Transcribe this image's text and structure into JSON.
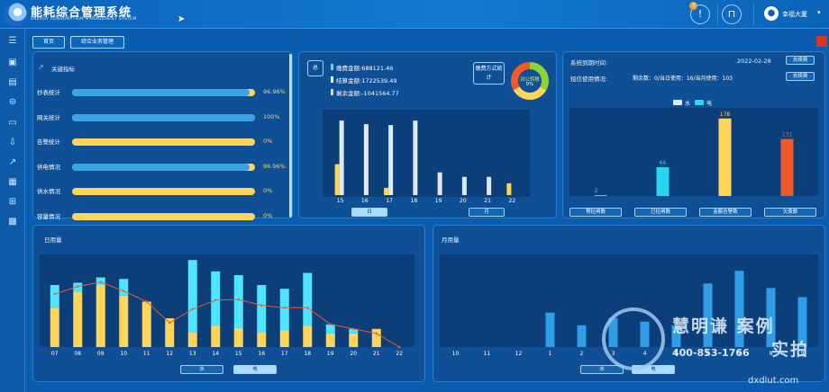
{
  "header": {
    "title": "能耗综合管理系统",
    "subtitle": "ENERGY CONSUMPTION MANAGEMENT SYSTEM",
    "notice_count": "3",
    "user": "幸福大厦"
  },
  "tabs": [
    {
      "label": "首页"
    },
    {
      "label": "综合业务管理"
    }
  ],
  "indicators": {
    "title": "关键指标",
    "items": [
      {
        "label": "抄表统计",
        "value": "96.96%",
        "pct": 96.96
      },
      {
        "label": "网关统计",
        "value": "100%",
        "pct": 100
      },
      {
        "label": "告警统计",
        "value": "0%",
        "pct": 0
      },
      {
        "label": "供电情况",
        "value": "96.96%",
        "pct": 96.96
      },
      {
        "label": "供水情况",
        "value": "0%",
        "pct": 0
      },
      {
        "label": "容量情况",
        "value": "0%",
        "pct": 0
      }
    ]
  },
  "billing": {
    "tag": "总",
    "lines": [
      {
        "text": "缴费金额:688121.46",
        "color": "#46e3ff"
      },
      {
        "text": "结算金额:1722539.49",
        "color": "#ffffff"
      },
      {
        "text": "剩余金额:-1041564.77",
        "color": "#ffd45a"
      }
    ],
    "method_label": "缴费方式统计",
    "donut_label": "对公转账",
    "donut_value": "0%",
    "buttons": {
      "day": "日",
      "month": "月"
    },
    "chart_data": {
      "type": "bar",
      "categories": [
        "15",
        "16",
        "17",
        "18",
        "19",
        "20",
        "21",
        "22"
      ],
      "series": [
        {
          "color": "#ffd45a",
          "values": [
            340,
            0,
            80,
            0,
            0,
            0,
            0,
            130
          ]
        },
        {
          "color": "#dfe8f5",
          "values": [
            820,
            780,
            770,
            820,
            250,
            200,
            200,
            0
          ]
        }
      ],
      "ylim": [
        0,
        900
      ]
    }
  },
  "system": {
    "expire_label": "系统到期时间:",
    "expire_date": "2022-02-28",
    "renew1": "去续费",
    "sms_label": "短信使用情况:",
    "sms_info": "剩余数：0/当日使用：16/当月使用：103",
    "renew2": "去续费",
    "legend": [
      {
        "label": "水",
        "color": "#dfe8f5"
      },
      {
        "label": "电",
        "color": "#29d6f0"
      }
    ],
    "buttons": [
      "预拉闸数",
      "已拉闸数",
      "金额告警数",
      "欠费数"
    ],
    "chart_data": {
      "type": "bar",
      "categories": [
        "预拉闸数",
        "已拉闸数",
        "金额告警数",
        "欠费数"
      ],
      "values": [
        2,
        66,
        178,
        131
      ],
      "colors": [
        "#29d6f0",
        "#29d6f0",
        "#ffd45a",
        "#f05a28"
      ],
      "ylim": [
        0,
        190
      ]
    }
  },
  "daily": {
    "title": "日用量",
    "buttons": {
      "water": "水",
      "elec": "电"
    },
    "chart_data": {
      "type": "bar",
      "categories": [
        "07",
        "08",
        "09",
        "10",
        "11",
        "12",
        "13",
        "14",
        "15",
        "16",
        "17",
        "18",
        "19",
        "20",
        "21",
        "22"
      ],
      "series": [
        {
          "color": "#ffd45a",
          "values": [
            52,
            73,
            82,
            68,
            60,
            38,
            20,
            28,
            25,
            20,
            22,
            28,
            18,
            18,
            24,
            0
          ]
        },
        {
          "color": "#4ee6ff",
          "values": [
            30,
            12,
            10,
            22,
            0,
            0,
            95,
            72,
            70,
            62,
            55,
            70,
            12,
            6,
            0,
            0
          ]
        }
      ],
      "line": [
        70,
        80,
        86,
        74,
        60,
        32,
        50,
        62,
        63,
        55,
        52,
        52,
        30,
        24,
        18,
        0
      ],
      "line_color": "#f05a28",
      "ylim": [
        0,
        120
      ]
    }
  },
  "monthly": {
    "title": "月用量",
    "buttons": {
      "water": "水",
      "elec": "电"
    },
    "chart_data": {
      "type": "bar",
      "categories": [
        "10",
        "11",
        "12",
        "1",
        "2",
        "3",
        "4",
        "5",
        "6",
        "7",
        "8",
        "9"
      ],
      "values": [
        0,
        0,
        0,
        38,
        24,
        32,
        28,
        24,
        70,
        84,
        65,
        55
      ],
      "color": "#2f9ee6",
      "ylim": [
        0,
        100
      ]
    }
  },
  "watermark": {
    "brand": "慧明谦",
    "case": "案例",
    "shoot": "实拍",
    "phone": "400-853-1766",
    "site": "dxdlut.com"
  }
}
